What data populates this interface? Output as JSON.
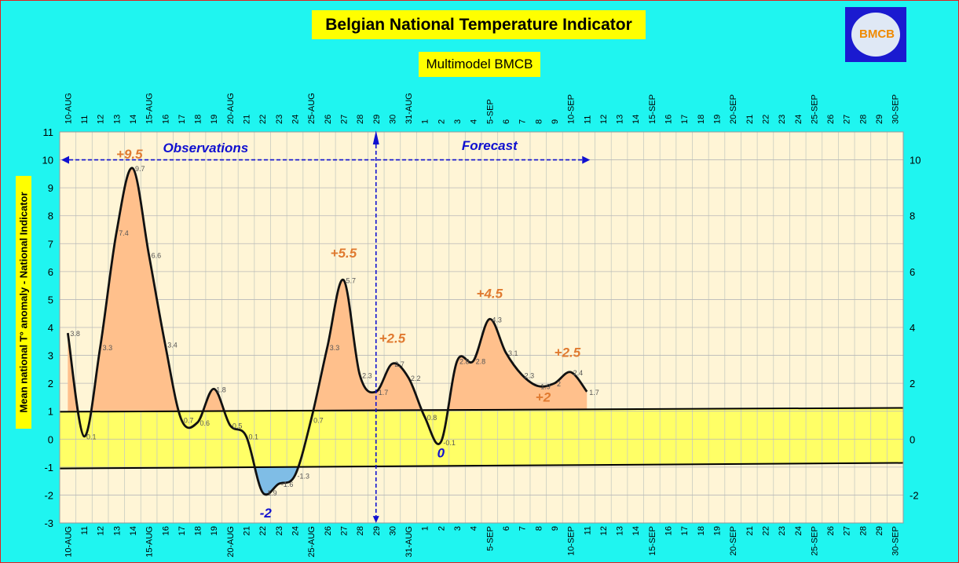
{
  "title": "Belgian National Temperature Indicator",
  "subtitle": "Multimodel BMCB",
  "logo_text": "BMCB",
  "colors": {
    "background": "#1ff5f0",
    "plot_area": "#fff5d6",
    "band": "#ffff66",
    "positive_fill": "#ffc08c",
    "negative_fill": "#7fbde6",
    "line": "#111111",
    "annotation_blue": "#1010d0",
    "annotation_orange": "#e07a30"
  },
  "chart_data": {
    "type": "line",
    "title": "Belgian National Temperature Indicator",
    "subtitle": "Multimodel BMCB",
    "ylabel": "Mean national T° anomaly - National Indicator",
    "ylim": [
      -3,
      11
    ],
    "ylim_right": [
      -3,
      11
    ],
    "yticks_left": [
      -3,
      -2,
      -1,
      0,
      1,
      2,
      3,
      4,
      5,
      6,
      7,
      8,
      9,
      10,
      11
    ],
    "yticks_right": [
      -2,
      0,
      2,
      4,
      6,
      8,
      10
    ],
    "x_tick_labels": [
      "10-AUG",
      "11",
      "12",
      "13",
      "14",
      "15-AUG",
      "16",
      "17",
      "18",
      "19",
      "20-AUG",
      "21",
      "22",
      "23",
      "24",
      "25-AUG",
      "26",
      "27",
      "28",
      "29",
      "30",
      "31-AUG",
      "1",
      "2",
      "3",
      "4",
      "5-SEP",
      "6",
      "7",
      "8",
      "9",
      "10-SEP",
      "11",
      "12",
      "13",
      "14",
      "15-SEP",
      "16",
      "17",
      "18",
      "19",
      "20-SEP",
      "21",
      "22",
      "23",
      "24",
      "25-SEP",
      "26",
      "27",
      "28",
      "29",
      "30-SEP"
    ],
    "series": [
      {
        "values": [
          3.8,
          0.1,
          3.3,
          7.4,
          9.7,
          6.6,
          3.4,
          0.7,
          0.6,
          1.8,
          0.5,
          0.1,
          -1.9,
          -1.6,
          -1.3,
          0.7,
          3.3,
          5.7,
          2.3,
          1.7,
          2.7,
          2.2,
          0.8,
          -0.1,
          2.8,
          2.8,
          4.3,
          3.1,
          2.3,
          1.9,
          2.0,
          2.4,
          1.7
        ]
      }
    ],
    "band": {
      "lower_start": -1.05,
      "lower_end": -0.85,
      "upper_start": 0.98,
      "upper_end": 1.12
    },
    "divider_x_index": 19,
    "observations_label": "Observations",
    "forecast_label": "Forecast",
    "annotations": [
      {
        "text": "+9.5",
        "x_index": 3.8,
        "y": 10.05,
        "color": "orange"
      },
      {
        "text": "+5.5",
        "x_index": 17.0,
        "y": 6.5,
        "color": "orange"
      },
      {
        "text": "+2.5",
        "x_index": 20.0,
        "y": 3.45,
        "color": "orange"
      },
      {
        "text": "+4.5",
        "x_index": 26.0,
        "y": 5.05,
        "color": "orange"
      },
      {
        "text": "+2.5",
        "x_index": 30.8,
        "y": 2.95,
        "color": "orange"
      },
      {
        "text": "+2",
        "x_index": 29.3,
        "y": 1.35,
        "color": "orange"
      },
      {
        "text": "-2",
        "x_index": 12.2,
        "y": -2.8,
        "color": "blue"
      },
      {
        "text": "0",
        "x_index": 23.0,
        "y": -0.65,
        "color": "blue"
      }
    ],
    "grid": true,
    "legend": "none"
  }
}
